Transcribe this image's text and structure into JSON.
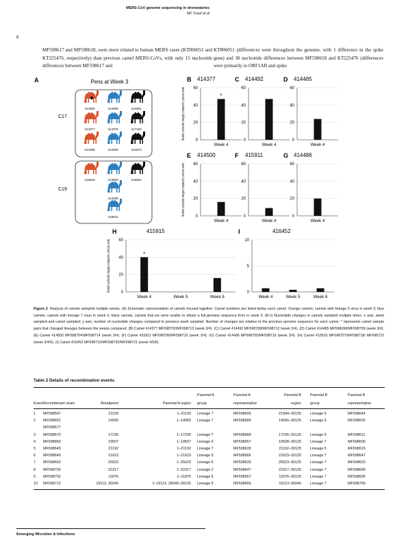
{
  "header": {
    "running_title": "MERS-CoV genome sequencing in dromedaries",
    "authors": "MF Yusof et al",
    "page_number": "6"
  },
  "body": {
    "left_column": "MF598617 and MF598618, were more related to human MERS cases (KT806051 and KT225476, respectively) than previous camel MERS-CoVs, with only 15 nucleotide differences between MF598617 and",
    "right_column": "KT806051 (differences were throughout the genome, with 1 difference in the spike gene) and 30 nucleotide differences between MF598618 and KT225476 (differences were primarily in ORF1AB and spike"
  },
  "figure": {
    "panel_a": {
      "letter": "A",
      "title": "Pens at Week 3",
      "pens": [
        {
          "label": "C17",
          "camels": [
            {
              "id": "414492",
              "color": "#d9532b"
            },
            {
              "id": "414485",
              "color": "#2d7fc0"
            },
            {
              "id": "414481",
              "color": "#111111"
            },
            {
              "id": "414377",
              "color": "#d9532b"
            },
            {
              "id": "414379",
              "color": "#2d7fc0"
            },
            {
              "id": "417152",
              "color": "#111111"
            },
            {
              "id": "414498",
              "color": "#d9532b"
            },
            {
              "id": "414480",
              "color": "#2d7fc0"
            },
            {
              "id": "414372",
              "color": "#111111"
            }
          ]
        },
        {
          "label": "C19",
          "camels": [
            {
              "id": "415915",
              "color": "#d9532b"
            },
            {
              "id": "414500",
              "color": "#2d7fc0"
            },
            {
              "id": "416452",
              "color": "#111111"
            },
            {
              "id": "414486",
              "color": "#2d7fc0"
            },
            {
              "id": "415911",
              "color": "#2d7fc0"
            }
          ]
        }
      ]
    },
    "ylabel": "Number nucleotide changes compared to previous week"
  },
  "chart_data": [
    {
      "panel": "B",
      "type": "bar",
      "title": "414377",
      "categories": [
        "Week 4"
      ],
      "values": [
        47
      ],
      "ylim": [
        0,
        60
      ],
      "yticks": [
        0,
        20,
        40,
        60
      ],
      "asterisk": "*",
      "xlabel": "",
      "ylabel": "Number nucleotide changes compared to previous week"
    },
    {
      "panel": "C",
      "type": "bar",
      "title": "414492",
      "categories": [
        "Week 4"
      ],
      "values": [
        47
      ],
      "ylim": [
        0,
        60
      ],
      "yticks": [
        0,
        20,
        40,
        60
      ],
      "xlabel": "",
      "ylabel": ""
    },
    {
      "panel": "D",
      "type": "bar",
      "title": "414485",
      "categories": [
        "Week 4"
      ],
      "values": [
        24
      ],
      "ylim": [
        0,
        60
      ],
      "yticks": [
        0,
        20,
        40,
        60
      ],
      "xlabel": "",
      "ylabel": ""
    },
    {
      "panel": "E",
      "type": "bar",
      "title": "414500",
      "categories": [
        "Week 4"
      ],
      "values": [
        16
      ],
      "ylim": [
        0,
        60
      ],
      "yticks": [
        0,
        20,
        40,
        60
      ],
      "xlabel": "",
      "ylabel": "Number nucleotide changes compared to previous week"
    },
    {
      "panel": "F",
      "type": "bar",
      "title": "415911",
      "categories": [
        "Week 4"
      ],
      "values": [
        9
      ],
      "ylim": [
        0,
        60
      ],
      "yticks": [
        0,
        20,
        40,
        60
      ],
      "xlabel": "",
      "ylabel": ""
    },
    {
      "panel": "G",
      "type": "bar",
      "title": "414486",
      "categories": [
        "Week 4"
      ],
      "values": [
        20
      ],
      "ylim": [
        0,
        60
      ],
      "yticks": [
        0,
        20,
        40,
        60
      ],
      "xlabel": "",
      "ylabel": ""
    },
    {
      "panel": "H",
      "type": "bar",
      "title": "415915",
      "categories": [
        "Week 4",
        "Week 5",
        "Week 6"
      ],
      "values": [
        40,
        0,
        16
      ],
      "ylim": [
        0,
        60
      ],
      "yticks": [
        0,
        20,
        40,
        60
      ],
      "asterisk": "*",
      "xlabel": "",
      "ylabel": "Number nucleotide changes compared to previous week"
    },
    {
      "panel": "I",
      "type": "bar",
      "title": "416452",
      "categories": [
        "Week 4",
        "Week 5",
        "Week 6"
      ],
      "values": [
        0.7,
        0.4,
        0.7
      ],
      "ylim": [
        0,
        10
      ],
      "yticks": [
        0,
        5,
        10
      ],
      "xlabel": "",
      "ylabel": ""
    }
  ],
  "caption": {
    "label": "Figure 2",
    "text": "Analysis of camels sampled multiple weeks. (A) Schematic representation of camels housed together. Camel numbers are listed below each camel. Orange camels, camels with lineage 5 virus in week 3; blue camels, camels with lineage 7 virus in week 3; black camels, camels that we were unable to obtain a full-genome sequence from in week 3. (B–I) Nucleotide changes in camels sampled multiple times. x axis, week sampled and camel sampled; y axis, number of nucleotide changes compared to previous week sampled. Number of changes are relative to the previous genome sequence for each camel. * represents camel sample pairs that changed lineages between the weeks compared. (B) Camel 414377 MF598702/MF598713 (week 3/4). (C) Camel 414492 MF598708/MF598712 (week 3/4). (D) Camel 414485 MF598699/MF598709 (week 3/4). (E) Camel 414500 MF598704/MF598714 (week 3/4). (F) Camel 415911 MF598706/MF598719 (week 3/4). (G) Camel 414486 MF598705/MF598716 (week 3/4). (H) Camel 415915 MF598707/MF598718/ MF598722 (week 3/4/6). (I) Camel 416452 MF598715/MF598720/MF598721 (week 4/5/6)."
  },
  "table": {
    "title": "Table 2  Details of recombination events",
    "headers": [
      [
        "Event"
      ],
      [
        "Recombinant strain"
      ],
      [
        "Breakpoint"
      ],
      [
        "Parental A region"
      ],
      [
        "Parental A",
        "group"
      ],
      [
        "Parental A",
        "representative"
      ],
      [
        "Parental B",
        "region"
      ],
      [
        "Parental B",
        "group"
      ],
      [
        "Parental B",
        "representative"
      ]
    ],
    "rows": [
      [
        "1",
        "MF598597",
        "21193",
        "1–21193",
        "Lineage 7",
        "MF598605",
        "21994–30125",
        "Lineage 5",
        "MF598644"
      ],
      [
        "2",
        "MF598652",
        "14055",
        "1–14055",
        "Lineage 7",
        "MF598689",
        "14056–30125",
        "Lineage 5",
        "MF598625"
      ],
      [
        "",
        "MF598677",
        "",
        "",
        "",
        "",
        "",
        "",
        ""
      ],
      [
        "3",
        "MF598670",
        "17236",
        "1–17236",
        "Lineage 7",
        "MF598689",
        "17236–30125",
        "Lineage 5",
        "MF598611"
      ],
      [
        "4",
        "MF598683",
        "19507",
        "1–19507",
        "Lineage 5",
        "MF598657",
        "19508–30125",
        "Lineage 7",
        "MF598605"
      ],
      [
        "5",
        "MF598645",
        "21192",
        "1–21192",
        "Lineage 7",
        "MF598630",
        "21192–30125",
        "Lineage 5",
        "MF598615"
      ],
      [
        "6",
        "MF598649",
        "21623",
        "1–21623",
        "Lineage 5",
        "MF598666",
        "21623–30125",
        "Lineage 7",
        "MF598647"
      ],
      [
        "7",
        "MF598660",
        "25623",
        "1–25623",
        "Lineage 5",
        "MF598633",
        "25623–30125",
        "Lineage 7",
        "MF598629"
      ],
      [
        "8",
        "MF598700",
        "22317",
        "1–22317",
        "Lineage 2",
        "MF598647",
        "22317–30125",
        "Lineage 7",
        "MF598699"
      ],
      [
        "9",
        "MF598702",
        "11876",
        "1–11876",
        "Lineage 5",
        "MF598657",
        "11876–30125",
        "Lineage 7",
        "MF598605"
      ],
      [
        "10",
        "MF598712",
        "19113, 26040",
        "1–19113, 26040–30125",
        "Lineage 5",
        "MF598666",
        "19113–26040",
        "Lineage 7",
        "MF598709"
      ]
    ]
  },
  "footer": {
    "journal": "Emerging Microbes & Infections"
  }
}
